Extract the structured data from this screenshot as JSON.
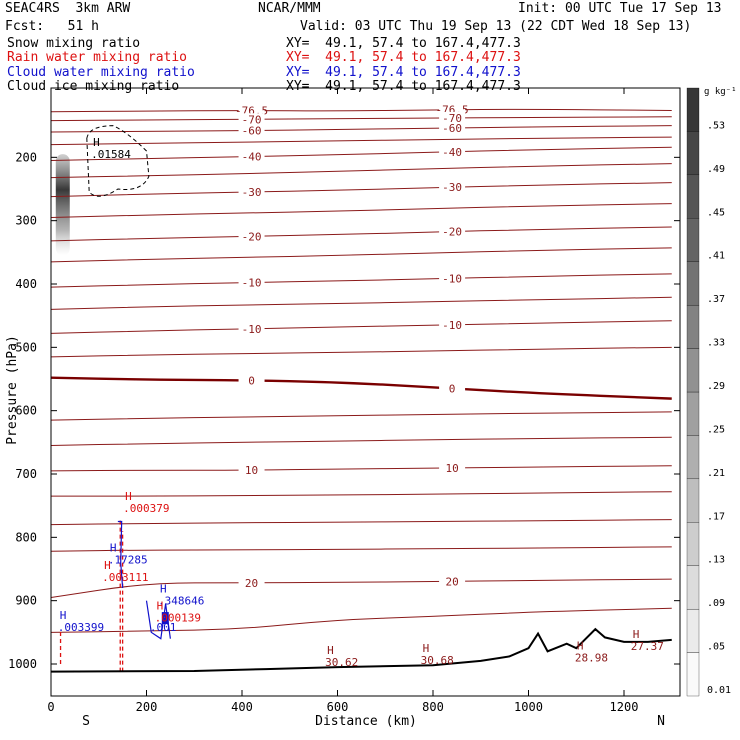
{
  "header": {
    "model": "SEAC4RS  3km ARW",
    "org": "NCAR/MMM",
    "init": "Init: 00 UTC Tue 17 Sep 13",
    "fcst": "Fcst:   51 h",
    "valid": "Valid: 03 UTC Thu 19 Sep 13 (22 CDT Wed 18 Sep 13)",
    "fields": [
      {
        "name": "Snow mixing ratio",
        "xy": "XY=  49.1, 57.4 to 167.4,477.3",
        "color": "#000000"
      },
      {
        "name": "Rain water mixing ratio",
        "xy": "XY=  49.1, 57.4 to 167.4,477.3",
        "color": "#dd1111"
      },
      {
        "name": "Cloud water mixing ratio",
        "xy": "XY=  49.1, 57.4 to 167.4,477.3",
        "color": "#1111cc"
      },
      {
        "name": "Cloud ice mixing ratio",
        "xy": "XY=  49.1, 57.4 to 167.4,477.3",
        "color": "#000000"
      }
    ]
  },
  "colors": {
    "temp_contour": "#8b1a1a",
    "zero_contour": "#7a0000",
    "rain": "#dd1111",
    "cloud_water": "#1111cc",
    "terrain": "#000000"
  },
  "chart_data": {
    "type": "line",
    "xlabel": "Distance (km)",
    "ylabel": "Pressure (hPa)",
    "xlim": [
      0,
      1320
    ],
    "ylim": [
      1050,
      100
    ],
    "xticks": [
      0,
      200,
      400,
      600,
      800,
      1000,
      1200
    ],
    "yticks": [
      200,
      300,
      400,
      500,
      600,
      700,
      800,
      900,
      1000
    ],
    "ends": {
      "left": "S",
      "right": "N"
    },
    "colorbar": {
      "units": "g kg⁻¹",
      "levels": [
        "0.01",
        ".05",
        ".09",
        ".13",
        ".17",
        ".21",
        ".25",
        ".29",
        ".33",
        ".37",
        ".41",
        ".45",
        ".49",
        ".53"
      ]
    },
    "temperature_contours": [
      {
        "label": "-76.5",
        "p": [
          128,
          127,
          126,
          127,
          125,
          124,
          126
        ]
      },
      {
        "label": "-70",
        "p": [
          142,
          141,
          140,
          139,
          138,
          137,
          136
        ]
      },
      {
        "label": "-60",
        "p": [
          160,
          159,
          158,
          156,
          154,
          152,
          150
        ]
      },
      {
        "label": "",
        "p": [
          180,
          178,
          176,
          174,
          172,
          170,
          168
        ]
      },
      {
        "label": "-40",
        "p": [
          205,
          202,
          199,
          196,
          192,
          188,
          184
        ]
      },
      {
        "label": "",
        "p": [
          232,
          229,
          226,
          222,
          218,
          214,
          210
        ]
      },
      {
        "label": "-30",
        "p": [
          262,
          258,
          255,
          252,
          248,
          244,
          240
        ]
      },
      {
        "label": "",
        "p": [
          295,
          291,
          288,
          285,
          281,
          277,
          273
        ]
      },
      {
        "label": "-20",
        "p": [
          332,
          328,
          325,
          322,
          318,
          314,
          310
        ]
      },
      {
        "label": "",
        "p": [
          365,
          361,
          358,
          355,
          351,
          347,
          343
        ]
      },
      {
        "label": "-10",
        "p": [
          405,
          401,
          398,
          395,
          392,
          388,
          384
        ]
      },
      {
        "label": "",
        "p": [
          440,
          436,
          433,
          431,
          428,
          425,
          421
        ]
      },
      {
        "label": "-10",
        "p": [
          478,
          474,
          471,
          468,
          465,
          462,
          458
        ]
      },
      {
        "label": "",
        "p": [
          515,
          512,
          510,
          508,
          506,
          503,
          500
        ]
      },
      {
        "label": "0",
        "p": [
          548,
          551,
          552,
          555,
          563,
          572,
          581
        ]
      },
      {
        "label": "",
        "p": [
          615,
          612,
          610,
          608,
          606,
          604,
          602
        ]
      },
      {
        "label": "",
        "p": [
          655,
          652,
          650,
          648,
          646,
          644,
          642
        ]
      },
      {
        "label": "10",
        "p": [
          695,
          694,
          694,
          692,
          691,
          689,
          687
        ]
      },
      {
        "label": "",
        "p": [
          735,
          735,
          734,
          733,
          732,
          730,
          728
        ]
      },
      {
        "label": "",
        "p": [
          780,
          778,
          777,
          776,
          775,
          774,
          772
        ]
      },
      {
        "label": "",
        "p": [
          822,
          820,
          820,
          819,
          818,
          817,
          815
        ]
      },
      {
        "label": "20",
        "p": [
          895,
          872,
          872,
          871,
          870,
          868,
          866
        ]
      },
      {
        "label": "",
        "p": [
          950,
          948,
          945,
          930,
          925,
          918,
          912
        ]
      }
    ],
    "contour_x": [
      0,
      200,
      400,
      600,
      800,
      1000,
      1300
    ],
    "terrain": {
      "x": [
        0,
        300,
        450,
        600,
        800,
        900,
        960,
        1000,
        1020,
        1040,
        1080,
        1100,
        1140,
        1160,
        1200,
        1250,
        1300
      ],
      "p": [
        1012,
        1011,
        1008,
        1005,
        1002,
        995,
        988,
        975,
        952,
        980,
        968,
        975,
        945,
        958,
        965,
        965,
        962
      ]
    },
    "annotations": [
      {
        "mark": "H",
        "value": ".01584",
        "x": 105,
        "p": 198,
        "color": "#000000"
      },
      {
        "mark": "H",
        "value": ".000379",
        "x": 172,
        "p": 757,
        "color": "#dd1111"
      },
      {
        "mark": "H",
        "value": ".17285",
        "x": 140,
        "p": 838,
        "color": "#1111cc"
      },
      {
        "mark": "H",
        "value": ".003111",
        "x": 128,
        "p": 866,
        "color": "#dd1111"
      },
      {
        "mark": "H",
        "value": ".348646",
        "x": 245,
        "p": 903,
        "color": "#1111cc"
      },
      {
        "mark": "H",
        "value": ".000139",
        "x": 238,
        "p": 930,
        "color": "#dd1111"
      },
      {
        "mark": "",
        "value": ".001",
        "x": 228,
        "p": 945,
        "color": "#1111cc"
      },
      {
        "mark": "H",
        "value": ".003399",
        "x": 35,
        "p": 945,
        "color": "#1111cc"
      },
      {
        "mark": "H",
        "value": "30.62",
        "x": 595,
        "p": 1000,
        "color": "#8b1a1a"
      },
      {
        "mark": "H",
        "value": "30.68",
        "x": 795,
        "p": 997,
        "color": "#8b1a1a"
      },
      {
        "mark": "H",
        "value": "28.98",
        "x": 1118,
        "p": 993,
        "color": "#8b1a1a"
      },
      {
        "mark": "H",
        "value": "27.37",
        "x": 1235,
        "p": 975,
        "color": "#8b1a1a"
      }
    ]
  }
}
